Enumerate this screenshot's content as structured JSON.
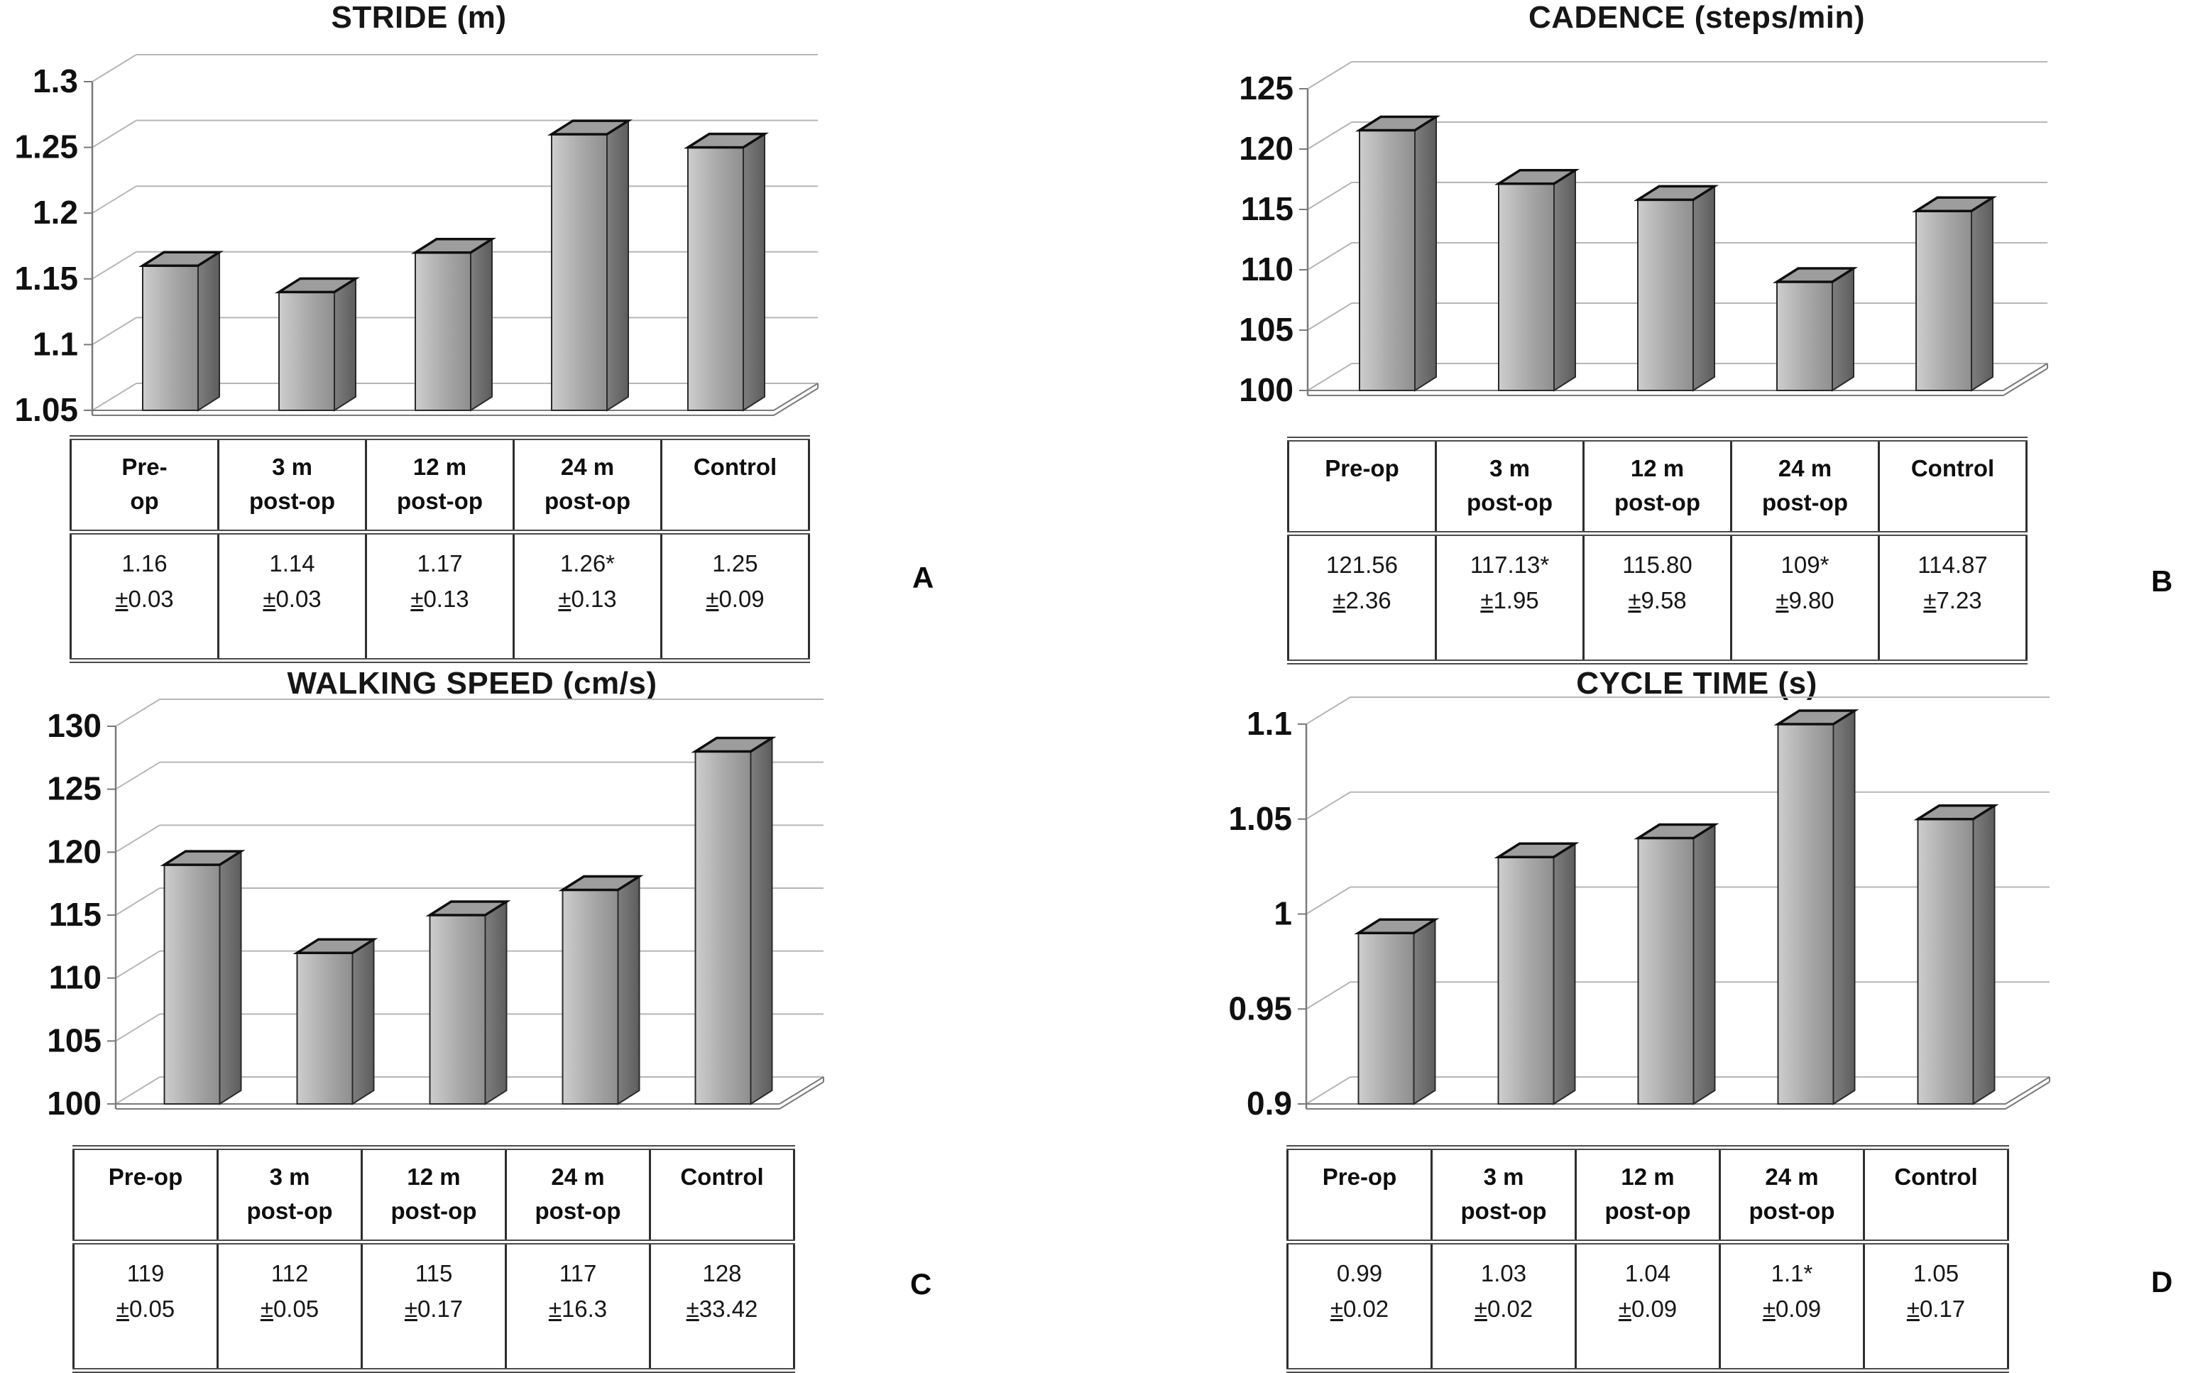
{
  "figure": {
    "pm_sign": "±",
    "panels": [
      {
        "label": "A",
        "title": "STRIDE (m)",
        "table": {
          "headers": [
            {
              "l1": "Pre-",
              "l2": "op"
            },
            {
              "l1": "3 m",
              "l2": "post-op"
            },
            {
              "l1": "12 m",
              "l2": "post-op"
            },
            {
              "l1": "24 m",
              "l2": "post-op"
            },
            {
              "l1": "Control",
              "l2": ""
            }
          ],
          "cells": [
            {
              "v": "1.16",
              "d": "0.03"
            },
            {
              "v": "1.14",
              "d": "0.03"
            },
            {
              "v": "1.17",
              "d": "0.13"
            },
            {
              "v": "1.26*",
              "d": "0.13"
            },
            {
              "v": "1.25",
              "d": "0.09"
            }
          ]
        }
      },
      {
        "label": "B",
        "title": "CADENCE (steps/min)",
        "table": {
          "headers": [
            {
              "l1": "Pre-op",
              "l2": ""
            },
            {
              "l1": "3 m",
              "l2": "post-op"
            },
            {
              "l1": "12 m",
              "l2": "post-op"
            },
            {
              "l1": "24 m",
              "l2": "post-op"
            },
            {
              "l1": "Control",
              "l2": ""
            }
          ],
          "cells": [
            {
              "v": "121.56",
              "d": "2.36"
            },
            {
              "v": "117.13*",
              "d": "1.95"
            },
            {
              "v": "115.80",
              "d": "9.58"
            },
            {
              "v": "109*",
              "d": "9.80"
            },
            {
              "v": "114.87",
              "d": "7.23"
            }
          ]
        }
      },
      {
        "label": "C",
        "title": "WALKING SPEED (cm/s)",
        "table": {
          "headers": [
            {
              "l1": "Pre-op",
              "l2": ""
            },
            {
              "l1": "3 m",
              "l2": "post-op"
            },
            {
              "l1": "12 m",
              "l2": "post-op"
            },
            {
              "l1": "24 m",
              "l2": "post-op"
            },
            {
              "l1": "Control",
              "l2": ""
            }
          ],
          "cells": [
            {
              "v": "119",
              "d": "0.05"
            },
            {
              "v": "112",
              "d": "0.05"
            },
            {
              "v": "115",
              "d": "0.17"
            },
            {
              "v": "117",
              "d": "16.3"
            },
            {
              "v": "128",
              "d": "33.42"
            }
          ]
        }
      },
      {
        "label": "D",
        "title": "CYCLE TIME (s)",
        "table": {
          "headers": [
            {
              "l1": "Pre-op",
              "l2": ""
            },
            {
              "l1": "3 m",
              "l2": "post-op"
            },
            {
              "l1": "12 m",
              "l2": "post-op"
            },
            {
              "l1": "24 m",
              "l2": "post-op"
            },
            {
              "l1": "Control",
              "l2": ""
            }
          ],
          "cells": [
            {
              "v": "0.99",
              "d": "0.02"
            },
            {
              "v": "1.03",
              "d": "0.02"
            },
            {
              "v": "1.04",
              "d": "0.09"
            },
            {
              "v": "1.1*",
              "d": "0.09"
            },
            {
              "v": "1.05",
              "d": "0.17"
            }
          ]
        }
      }
    ]
  },
  "chart_data": [
    {
      "panel": "A",
      "type": "bar",
      "style": "3d-column",
      "title": "STRIDE (m)",
      "xlabel": "",
      "ylabel": "",
      "categories": [
        "Pre-op",
        "3 m post-op",
        "12 m post-op",
        "24 m post-op",
        "Control"
      ],
      "values": [
        1.16,
        1.14,
        1.17,
        1.26,
        1.25
      ],
      "sd": [
        0.03,
        0.03,
        0.13,
        0.13,
        0.09
      ],
      "significant": [
        false,
        false,
        false,
        true,
        false
      ],
      "ylim": [
        1.05,
        1.3
      ],
      "ytick_step": 0.05,
      "yticks": [
        "1.3",
        "1.25",
        "1.2",
        "1.15",
        "1.1",
        "1.05"
      ],
      "grid": true,
      "legend": "none"
    },
    {
      "panel": "B",
      "type": "bar",
      "style": "3d-column",
      "title": "CADENCE (steps/min)",
      "xlabel": "",
      "ylabel": "",
      "categories": [
        "Pre-op",
        "3 m post-op",
        "12 m post-op",
        "24 m post-op",
        "Control"
      ],
      "values": [
        121.56,
        117.13,
        115.8,
        109,
        114.87
      ],
      "sd": [
        2.36,
        1.95,
        9.58,
        9.8,
        7.23
      ],
      "significant": [
        false,
        true,
        false,
        true,
        false
      ],
      "ylim": [
        100,
        125
      ],
      "ytick_step": 5,
      "yticks": [
        "125",
        "120",
        "115",
        "110",
        "105",
        "100"
      ],
      "grid": true,
      "legend": "none"
    },
    {
      "panel": "C",
      "type": "bar",
      "style": "3d-column",
      "title": "WALKING SPEED (cm/s)",
      "xlabel": "",
      "ylabel": "",
      "categories": [
        "Pre-op",
        "3 m post-op",
        "12 m post-op",
        "24 m post-op",
        "Control"
      ],
      "values": [
        119,
        112,
        115,
        117,
        128
      ],
      "sd": [
        0.05,
        0.05,
        0.17,
        16.3,
        33.42
      ],
      "significant": [
        false,
        false,
        false,
        false,
        false
      ],
      "ylim": [
        100,
        130
      ],
      "ytick_step": 5,
      "yticks": [
        "130",
        "125",
        "120",
        "115",
        "110",
        "105",
        "100"
      ],
      "grid": true,
      "legend": "none"
    },
    {
      "panel": "D",
      "type": "bar",
      "style": "3d-column",
      "title": "CYCLE TIME (s)",
      "xlabel": "",
      "ylabel": "",
      "categories": [
        "Pre-op",
        "3 m post-op",
        "12 m post-op",
        "24 m post-op",
        "Control"
      ],
      "values": [
        0.99,
        1.03,
        1.04,
        1.1,
        1.05
      ],
      "sd": [
        0.02,
        0.02,
        0.09,
        0.09,
        0.17
      ],
      "significant": [
        false,
        false,
        false,
        true,
        false
      ],
      "ylim": [
        0.9,
        1.1
      ],
      "ytick_step": 0.05,
      "yticks": [
        "1.1",
        "1.05",
        "1",
        "0.95",
        "0.9"
      ],
      "grid": true,
      "legend": "none"
    }
  ],
  "colors": {
    "background": "#ffffff",
    "text": "#101010",
    "gridline": "#b6b6b6",
    "axis": "#7a7a7a",
    "bar_front_light": "#cdcdcd",
    "bar_front": "#a8a8a8",
    "bar_front_dark": "#8f8f8f",
    "bar_side_light": "#7e7e7e",
    "bar_side": "#5d5d5d",
    "bar_top": "#9d9d9d",
    "bar_top_edge": "#0f0f0f",
    "bar_edge": "#2a2a2a"
  }
}
